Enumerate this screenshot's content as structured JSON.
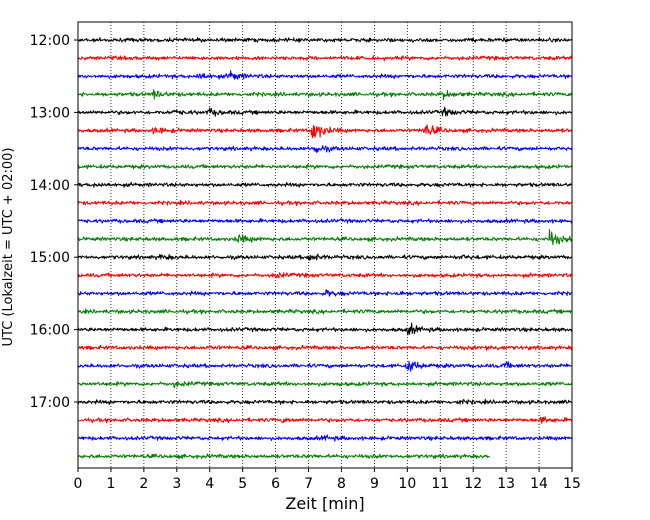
{
  "chart_data": {
    "type": "line",
    "title": "",
    "xlabel": "Zeit  [min]",
    "ylabel": "UTC (Lokalzeit = UTC + 02:00)",
    "xlim": [
      0,
      15
    ],
    "x_ticks": [
      "0",
      "1",
      "2",
      "3",
      "4",
      "5",
      "6",
      "7",
      "8",
      "9",
      "10",
      "11",
      "12",
      "13",
      "14",
      "15"
    ],
    "y_ticks": [
      "12:00",
      "13:00",
      "14:00",
      "15:00",
      "16:00",
      "17:00"
    ],
    "trace_start_times": [
      "12:00",
      "12:15",
      "12:30",
      "12:45",
      "13:00",
      "13:15",
      "13:30",
      "13:45",
      "14:00",
      "14:15",
      "14:30",
      "14:45",
      "15:00",
      "15:15",
      "15:30",
      "15:45",
      "16:00",
      "16:15",
      "16:30",
      "16:45",
      "17:00",
      "17:15",
      "17:30",
      "17:45"
    ],
    "trace_color_cycle": [
      "#000000",
      "#ff0000",
      "#0000ff",
      "#008000"
    ],
    "last_trace_end_min": 12.5,
    "grid": "vertical dotted lines at each minute",
    "events": [
      {
        "trace": 2,
        "x_min": 3.65,
        "amplitude": 3.0
      },
      {
        "trace": 2,
        "x_min": 4.6,
        "amplitude": 3.5
      },
      {
        "trace": 3,
        "x_min": 2.3,
        "amplitude": 2.5
      },
      {
        "trace": 3,
        "x_min": 11.1,
        "amplitude": 2.5
      },
      {
        "trace": 4,
        "x_min": 3.95,
        "amplitude": 2.5
      },
      {
        "trace": 4,
        "x_min": 2.85,
        "amplitude": 1.5
      },
      {
        "trace": 4,
        "x_min": 11.1,
        "amplitude": 2.5
      },
      {
        "trace": 5,
        "x_min": 7.1,
        "amplitude": 9.0
      },
      {
        "trace": 5,
        "x_min": 10.5,
        "amplitude": 5.0
      },
      {
        "trace": 5,
        "x_min": 2.3,
        "amplitude": 2.5
      },
      {
        "trace": 6,
        "x_min": 7.15,
        "amplitude": 4.0
      },
      {
        "trace": 8,
        "x_min": 0.5,
        "amplitude": 1.2
      },
      {
        "trace": 11,
        "x_min": 4.85,
        "amplitude": 3.0
      },
      {
        "trace": 11,
        "x_min": 14.3,
        "amplitude": 6.0
      },
      {
        "trace": 12,
        "x_min": 7.0,
        "amplitude": 3.0
      },
      {
        "trace": 12,
        "x_min": 2.5,
        "amplitude": 1.5
      },
      {
        "trace": 12,
        "x_min": 11.6,
        "amplitude": 1.2
      },
      {
        "trace": 13,
        "x_min": 5.95,
        "amplitude": 1.5
      },
      {
        "trace": 14,
        "x_min": 7.5,
        "amplitude": 2.0
      },
      {
        "trace": 14,
        "x_min": 9.6,
        "amplitude": 1.5
      },
      {
        "trace": 16,
        "x_min": 10.0,
        "amplitude": 4.0
      },
      {
        "trace": 17,
        "x_min": 12.4,
        "amplitude": 1.5
      },
      {
        "trace": 17,
        "x_min": 3.95,
        "amplitude": 1.0
      },
      {
        "trace": 18,
        "x_min": 10.0,
        "amplitude": 5.0
      },
      {
        "trace": 18,
        "x_min": 12.9,
        "amplitude": 2.0
      },
      {
        "trace": 19,
        "x_min": 2.9,
        "amplitude": 1.5
      },
      {
        "trace": 20,
        "x_min": 11.5,
        "amplitude": 1.0
      },
      {
        "trace": 21,
        "x_min": 14.05,
        "amplitude": 2.0
      },
      {
        "trace": 21,
        "x_min": 6.2,
        "amplitude": 1.0
      },
      {
        "trace": 22,
        "x_min": 7.45,
        "amplitude": 1.5
      }
    ]
  }
}
